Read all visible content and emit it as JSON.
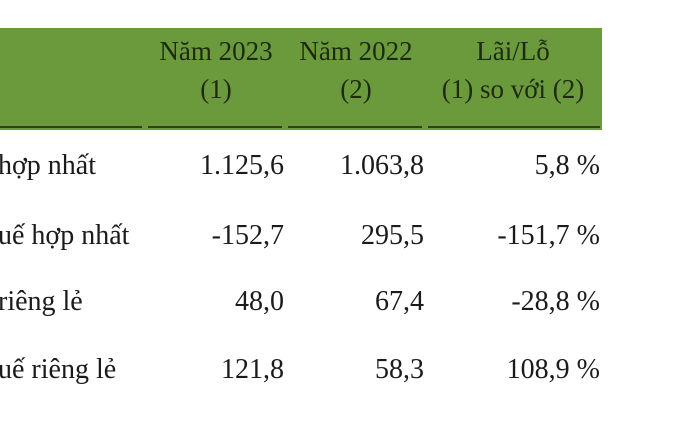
{
  "table": {
    "header": {
      "col1": {
        "line1": "Năm 2023",
        "line2": "(1)"
      },
      "col2": {
        "line1": "Năm 2022",
        "line2": "(2)"
      },
      "col3": {
        "line1": "Lãi/Lỗ",
        "line2": "(1) so với (2)"
      },
      "band_color": "#6a9a3c"
    },
    "rows": [
      {
        "label": "hợp nhất",
        "v2023": "1.125,6",
        "v2022": "1.063,8",
        "change": "5,8 %"
      },
      {
        "label": "uế hợp nhất",
        "v2023": "-152,7",
        "v2022": "295,5",
        "change": "-151,7 %"
      },
      {
        "label": "riêng lẻ",
        "v2023": "48,0",
        "v2022": "67,4",
        "change": "-28,8 %"
      },
      {
        "label": "uế riêng lẻ",
        "v2023": "121,8",
        "v2022": "58,3",
        "change": "108,9 %"
      }
    ]
  }
}
